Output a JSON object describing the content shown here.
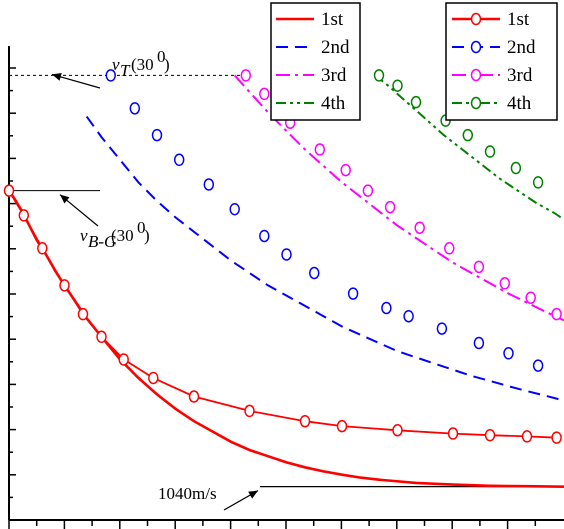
{
  "chart_data": {
    "type": "line",
    "title": "",
    "xlabel": "",
    "ylabel": "",
    "y_ticks_count": 22,
    "x_ticks_count": 10,
    "legend_left": {
      "placement": "top-center",
      "entries": [
        "1st",
        "2nd",
        "3rd",
        "4th"
      ],
      "style": "lines"
    },
    "legend_right": {
      "placement": "top-right",
      "entries": [
        "1st",
        "2nd",
        "3rd",
        "4th"
      ],
      "style": "lines-with-circles"
    },
    "annotations": {
      "vT_main": "v",
      "vT_sub": "T",
      "vT_arg": "(30",
      "vT_sup": "0",
      "vT_close": ")",
      "vBG_main": "v",
      "vBG_sub": "B-G",
      "vBG_arg": "(30",
      "vBG_sup": "0",
      "vBG_close": ")",
      "floor_label": "1040m/s"
    },
    "colors": {
      "1st": "#ff0000",
      "2nd": "#0000ff",
      "3rd": "#ff00ff",
      "4th": "#008000"
    },
    "series": [
      {
        "name": "1st",
        "kind": "line",
        "x": [
          0,
          0.03,
          0.07,
          0.11,
          0.15,
          0.2,
          0.25,
          0.3,
          0.36,
          0.42,
          0.5,
          0.6,
          0.7,
          0.8,
          0.9,
          1.0,
          1.1,
          1.2,
          1.3,
          1.4,
          1.5,
          1.6,
          1.7,
          1.8,
          1.9,
          2.0,
          2.2,
          2.4,
          2.6,
          2.8,
          3.0
        ],
        "y": [
          0.8,
          0.78,
          0.75,
          0.715,
          0.68,
          0.645,
          0.605,
          0.57,
          0.53,
          0.49,
          0.445,
          0.39,
          0.345,
          0.305,
          0.27,
          0.24,
          0.215,
          0.19,
          0.17,
          0.155,
          0.14,
          0.128,
          0.118,
          0.11,
          0.103,
          0.098,
          0.09,
          0.086,
          0.083,
          0.082,
          0.081
        ]
      },
      {
        "name": "2nd",
        "kind": "line",
        "x": [
          0.42,
          0.5,
          0.6,
          0.7,
          0.8,
          0.9,
          1.0,
          1.1,
          1.2,
          1.3,
          1.4,
          1.5,
          1.6,
          1.7,
          1.8,
          1.9,
          2.0,
          2.1,
          2.2,
          2.3,
          2.4,
          2.5,
          2.6,
          2.7,
          2.8,
          2.9,
          3.0
        ],
        "y": [
          0.98,
          0.93,
          0.875,
          0.82,
          0.775,
          0.735,
          0.7,
          0.665,
          0.63,
          0.6,
          0.57,
          0.545,
          0.52,
          0.495,
          0.47,
          0.45,
          0.43,
          0.41,
          0.395,
          0.38,
          0.365,
          0.35,
          0.338,
          0.325,
          0.313,
          0.302,
          0.29
        ]
      },
      {
        "name": "3rd",
        "kind": "line",
        "x": [
          1.22,
          1.3,
          1.4,
          1.5,
          1.6,
          1.7,
          1.8,
          1.9,
          2.0,
          2.1,
          2.2,
          2.3,
          2.4,
          2.5,
          2.6,
          2.7,
          2.8,
          2.9,
          3.0
        ],
        "y": [
          1.08,
          1.04,
          0.99,
          0.945,
          0.9,
          0.86,
          0.82,
          0.785,
          0.75,
          0.715,
          0.685,
          0.655,
          0.625,
          0.6,
          0.575,
          0.55,
          0.528,
          0.506,
          0.485
        ]
      },
      {
        "name": "4th",
        "kind": "line",
        "x": [
          1.98,
          2.05,
          2.15,
          2.25,
          2.35,
          2.45,
          2.55,
          2.65,
          2.75,
          2.85,
          2.95,
          3.0
        ],
        "y": [
          1.08,
          1.055,
          1.015,
          0.975,
          0.935,
          0.9,
          0.865,
          0.83,
          0.8,
          0.77,
          0.745,
          0.73
        ]
      },
      {
        "name": "1st",
        "kind": "circles",
        "x": [
          0,
          0.08,
          0.18,
          0.3,
          0.4,
          0.5,
          0.62,
          0.78,
          1.0,
          1.3,
          1.6,
          1.8,
          2.1,
          2.4,
          2.6,
          2.8,
          2.96
        ],
        "y": [
          0.8,
          0.74,
          0.66,
          0.57,
          0.5,
          0.445,
          0.39,
          0.345,
          0.3,
          0.265,
          0.24,
          0.228,
          0.218,
          0.21,
          0.206,
          0.203,
          0.2
        ]
      },
      {
        "name": "2nd",
        "kind": "circles",
        "x": [
          0.55,
          0.68,
          0.8,
          0.92,
          1.08,
          1.22,
          1.38,
          1.5,
          1.65,
          1.86,
          2.04,
          2.16,
          2.34,
          2.54,
          2.7,
          2.86
        ],
        "y": [
          1.08,
          1.0,
          0.935,
          0.875,
          0.815,
          0.755,
          0.69,
          0.645,
          0.6,
          0.55,
          0.515,
          0.495,
          0.465,
          0.43,
          0.405,
          0.375
        ]
      },
      {
        "name": "3rd",
        "kind": "circles",
        "x": [
          1.28,
          1.38,
          1.52,
          1.68,
          1.82,
          1.94,
          2.06,
          2.22,
          2.38,
          2.54,
          2.68,
          2.82,
          2.96
        ],
        "y": [
          1.08,
          1.035,
          0.965,
          0.9,
          0.85,
          0.8,
          0.76,
          0.71,
          0.66,
          0.615,
          0.575,
          0.54,
          0.5
        ]
      },
      {
        "name": "4th",
        "kind": "circles",
        "x": [
          2.0,
          2.1,
          2.2,
          2.36,
          2.48,
          2.6,
          2.74,
          2.86
        ],
        "y": [
          1.08,
          1.055,
          1.015,
          0.97,
          0.935,
          0.895,
          0.855,
          0.82
        ]
      }
    ],
    "xlim": [
      0,
      3.0
    ],
    "ylim": [
      0,
      1.2
    ],
    "reference_lines": {
      "vT_y": 1.08,
      "vBG_y": 0.8,
      "floor_y": 0.081
    }
  }
}
